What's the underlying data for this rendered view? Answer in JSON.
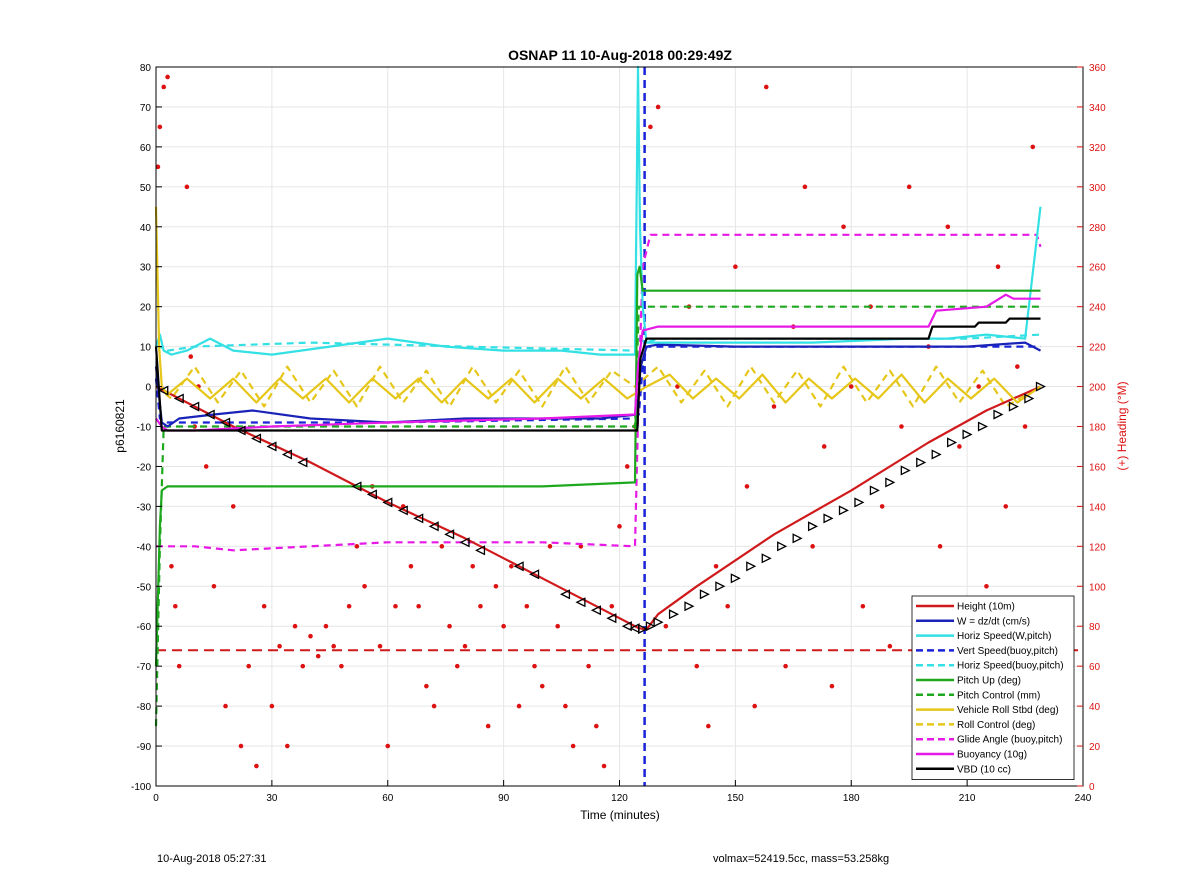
{
  "chart_data": {
    "type": "line",
    "title": "OSNAP 11 10-Aug-2018 00:29:49Z",
    "xlabel": "Time (minutes)",
    "ylabel": "p6160821",
    "y2label": "(+) Heading (°M)",
    "xlim": [
      0,
      240
    ],
    "ylim": [
      -100,
      80
    ],
    "y2lim": [
      0,
      360
    ],
    "xticks": [
      0,
      30,
      60,
      90,
      120,
      150,
      180,
      210,
      240
    ],
    "yticks": [
      -100,
      -90,
      -80,
      -70,
      -60,
      -50,
      -40,
      -30,
      -20,
      -10,
      0,
      10,
      20,
      30,
      40,
      50,
      60,
      70,
      80
    ],
    "y2ticks": [
      0,
      20,
      40,
      60,
      80,
      100,
      120,
      140,
      160,
      180,
      200,
      220,
      240,
      260,
      280,
      300,
      320,
      340,
      360
    ],
    "grid": true,
    "legend_position": "bottom-right",
    "vertical_marker_x": 126.5,
    "horizontal_marker_y": -66,
    "colors": {
      "height": "#d0191b",
      "w": "#1a23b8",
      "horiz_w": "#33e0e4",
      "vert_buoy": "#1a23d8",
      "horiz_buoy": "#33e0e4",
      "pitch": "#1ea81e",
      "pitch_control": "#1ea81e",
      "roll": "#e6c619",
      "roll_control": "#e6c619",
      "glide": "#e619e6",
      "buoyancy": "#e619e6",
      "vbd": "#000000",
      "heading": "#dd1111"
    },
    "series": [
      {
        "name": "Height (10m)",
        "key": "height",
        "style": "solid",
        "x": [
          0,
          2,
          10,
          20,
          40,
          60,
          80,
          100,
          118,
          125,
          127,
          130,
          140,
          160,
          180,
          200,
          215,
          229
        ],
        "y": [
          0,
          -1,
          -5,
          -10,
          -19,
          -29,
          -38,
          -48,
          -57,
          -60.5,
          -60.8,
          -57,
          -50,
          -37,
          -26,
          -14,
          -6,
          0
        ]
      },
      {
        "name": "W = dz/dt (cm/s)",
        "key": "w",
        "style": "solid",
        "x": [
          0,
          1.5,
          3,
          6,
          15,
          25,
          40,
          60,
          80,
          100,
          115,
          124.5,
          125.5,
          127,
          130,
          150,
          170,
          190,
          210,
          225,
          229
        ],
        "y": [
          5,
          -9,
          -10,
          -8,
          -7,
          -6,
          -8,
          -9,
          -8,
          -8,
          -8,
          -7,
          5,
          10,
          10.5,
          10,
          10,
          10,
          10,
          11,
          9
        ]
      },
      {
        "name": "Horiz Speed(W,pitch)",
        "key": "horiz_w",
        "style": "solid",
        "x": [
          0,
          1,
          2,
          4,
          8,
          14,
          20,
          30,
          45,
          60,
          75,
          90,
          105,
          115,
          124,
          124.8,
          125.3,
          126,
          127,
          130,
          150,
          170,
          195,
          205,
          215,
          225,
          229
        ],
        "y": [
          10,
          13,
          9,
          8,
          9,
          12,
          9,
          8,
          10,
          12,
          10,
          9,
          9,
          8,
          8,
          80,
          40,
          20,
          11,
          11,
          11,
          11,
          12,
          12,
          13,
          12,
          45
        ]
      },
      {
        "name": "Vert Speed(buoy,pitch)",
        "key": "vert_buoy",
        "style": "dashed",
        "x": [
          0,
          1,
          3,
          20,
          60,
          124,
          125,
          126,
          127,
          130,
          170,
          210,
          229
        ],
        "y": [
          2,
          -8,
          -9,
          -9,
          -9,
          -8,
          -7,
          5,
          10,
          10,
          10,
          10,
          10
        ]
      },
      {
        "name": "Horiz Speed(buoy,pitch)",
        "key": "horiz_buoy",
        "style": "dashed",
        "x": [
          0,
          1,
          3,
          10,
          40,
          80,
          124,
          125,
          127,
          130,
          170,
          210,
          229
        ],
        "y": [
          10,
          10,
          9,
          10,
          11,
          10,
          9,
          12,
          11,
          12,
          12,
          12,
          13
        ]
      },
      {
        "name": "Pitch Up (deg)",
        "key": "pitch",
        "style": "solid",
        "x": [
          0,
          1,
          1.5,
          3,
          20,
          60,
          100,
          124,
          124.6,
          125.2,
          126,
          130,
          160,
          200,
          229
        ],
        "y": [
          -70,
          -35,
          -26,
          -25,
          -25,
          -25,
          -25,
          -24,
          28,
          30,
          24,
          24,
          24,
          24,
          24
        ]
      },
      {
        "name": "Pitch Control (mm)",
        "key": "pitch_control",
        "style": "dashed",
        "x": [
          0,
          1,
          2,
          60,
          124,
          125,
          127,
          229
        ],
        "y": [
          -85,
          -40,
          -10,
          -10,
          -10,
          20,
          20,
          20
        ]
      },
      {
        "name": "Vehicle Roll Stbd (deg)",
        "key": "roll",
        "style": "solid",
        "x": [
          0,
          0.8,
          1.5,
          3,
          8,
          14,
          20,
          26,
          32,
          38,
          44,
          50,
          56,
          62,
          68,
          74,
          80,
          86,
          92,
          98,
          104,
          110,
          116,
          122,
          127,
          133,
          139,
          145,
          151,
          157,
          163,
          169,
          175,
          181,
          187,
          193,
          199,
          205,
          211,
          217,
          223,
          229
        ],
        "y": [
          45,
          10,
          0,
          -2,
          2,
          -3,
          2,
          -4,
          2,
          -3,
          2,
          -4,
          2,
          -3,
          2,
          -4,
          2,
          -3,
          2,
          -4,
          2,
          -3,
          2,
          -3,
          0,
          3,
          -3,
          2,
          -3,
          3,
          -4,
          2,
          -3,
          2,
          -3,
          3,
          -4,
          2,
          -3,
          2,
          -4,
          0
        ]
      },
      {
        "name": "Roll Control (deg)",
        "key": "roll_control",
        "style": "dashed",
        "x": [
          0,
          4,
          10,
          16,
          22,
          28,
          34,
          40,
          46,
          52,
          58,
          64,
          70,
          76,
          82,
          88,
          94,
          100,
          106,
          112,
          118,
          124,
          130,
          136,
          142,
          148,
          154,
          160,
          166,
          172,
          178,
          184,
          190,
          196,
          202,
          208,
          214,
          220,
          229
        ],
        "y": [
          0,
          -3,
          5,
          -4,
          4,
          -5,
          5,
          -4,
          4,
          -5,
          5,
          -4,
          4,
          -5,
          5,
          -4,
          4,
          -5,
          5,
          -4,
          4,
          0,
          5,
          -4,
          4,
          -5,
          5,
          -4,
          4,
          -5,
          5,
          -4,
          4,
          -5,
          5,
          -4,
          4,
          -5,
          0
        ]
      },
      {
        "name": "Glide Angle (buoy,pitch)",
        "key": "glide",
        "style": "dashed",
        "x": [
          0,
          1,
          2,
          10,
          20,
          40,
          60,
          80,
          100,
          124,
          125,
          126,
          128,
          140,
          160,
          180,
          200,
          220,
          228,
          229
        ],
        "y": [
          -40,
          -40,
          -40,
          -40,
          -41,
          -40,
          -39,
          -39,
          -39,
          -40,
          0,
          30,
          38,
          38,
          38,
          38,
          38,
          38,
          38,
          35
        ]
      },
      {
        "name": "Buoyancy (10g)",
        "key": "buoyancy",
        "style": "solid",
        "x": [
          0,
          1.5,
          3,
          10,
          30,
          60,
          100,
          124,
          124.8,
          126,
          130,
          150,
          180,
          200,
          202,
          215,
          220,
          222,
          229
        ],
        "y": [
          -8,
          -10,
          -11,
          -11,
          -10,
          -9,
          -8,
          -7,
          5,
          14,
          15,
          15,
          15,
          15,
          19,
          20,
          23,
          22,
          22
        ]
      },
      {
        "name": "VBD (10 cc)",
        "key": "vbd",
        "style": "solid",
        "x": [
          0,
          1.5,
          3,
          60,
          124,
          124.6,
          125.4,
          127,
          130,
          200,
          201,
          212,
          213,
          220,
          221,
          229
        ],
        "y": [
          10,
          -11,
          -11,
          -11,
          -11,
          -11,
          7,
          12,
          12,
          12,
          15,
          15,
          16,
          16,
          17,
          17
        ]
      },
      {
        "name": "Heading",
        "key": "heading",
        "style": "dots",
        "axis": "right",
        "x": [
          0.5,
          1,
          2,
          3,
          4,
          5,
          6,
          8,
          9,
          10,
          11,
          13,
          15,
          18,
          20,
          22,
          24,
          26,
          28,
          30,
          32,
          34,
          36,
          38,
          40,
          42,
          44,
          46,
          48,
          50,
          52,
          54,
          56,
          58,
          60,
          62,
          64,
          66,
          68,
          70,
          72,
          74,
          76,
          78,
          80,
          82,
          84,
          86,
          88,
          90,
          92,
          94,
          96,
          98,
          100,
          102,
          104,
          106,
          108,
          110,
          112,
          114,
          116,
          118,
          120,
          122,
          124,
          128,
          130,
          132,
          135,
          138,
          140,
          143,
          145,
          148,
          150,
          153,
          155,
          158,
          160,
          163,
          165,
          168,
          170,
          173,
          175,
          178,
          180,
          183,
          185,
          188,
          190,
          193,
          195,
          198,
          200,
          203,
          205,
          208,
          210,
          213,
          215,
          218,
          220,
          223,
          225,
          227
        ],
        "y": [
          310,
          330,
          350,
          355,
          110,
          90,
          60,
          300,
          215,
          180,
          200,
          160,
          100,
          40,
          140,
          20,
          60,
          10,
          90,
          40,
          70,
          20,
          80,
          60,
          75,
          65,
          80,
          70,
          60,
          90,
          120,
          100,
          150,
          70,
          20,
          90,
          140,
          110,
          90,
          50,
          40,
          120,
          80,
          60,
          70,
          110,
          90,
          30,
          100,
          80,
          110,
          40,
          90,
          60,
          50,
          120,
          80,
          40,
          20,
          120,
          60,
          30,
          10,
          90,
          130,
          160,
          180,
          330,
          340,
          80,
          200,
          240,
          60,
          30,
          110,
          90,
          260,
          150,
          40,
          350,
          190,
          60,
          230,
          300,
          120,
          170,
          50,
          280,
          200,
          90,
          240,
          140,
          70,
          180,
          300,
          60,
          220,
          120,
          280,
          170,
          40,
          200,
          100,
          260,
          140,
          210,
          180,
          320
        ]
      },
      {
        "name": "Height markers",
        "key": "height",
        "style": "triangles",
        "x": [
          2,
          6,
          10,
          14,
          18,
          22,
          26,
          30,
          34,
          38,
          52,
          56,
          60,
          64,
          68,
          72,
          76,
          80,
          84,
          94,
          98,
          106,
          110,
          114,
          118,
          122,
          124,
          126,
          128,
          130,
          134,
          138,
          142,
          146,
          150,
          154,
          158,
          162,
          166,
          170,
          174,
          178,
          182,
          186,
          190,
          194,
          198,
          202,
          206,
          210,
          214,
          218,
          222,
          226,
          229
        ],
        "y": [
          -1,
          -3,
          -5,
          -7,
          -9,
          -11,
          -13,
          -15,
          -17,
          -19,
          -25,
          -27,
          -29,
          -31,
          -33,
          -35,
          -37,
          -39,
          -41,
          -45,
          -47,
          -52,
          -54,
          -56,
          -58,
          -60,
          -60.5,
          -60.7,
          -60,
          -59,
          -57,
          -55,
          -52,
          -50,
          -48,
          -45,
          -43,
          -40,
          -38,
          -35,
          -33,
          -31,
          -29,
          -26,
          -24,
          -21,
          -19,
          -17,
          -14,
          -12,
          -10,
          -7,
          -5,
          -3,
          0
        ]
      }
    ]
  },
  "footer": {
    "left": "10-Aug-2018 05:27:31",
    "right": "volmax=52419.5cc, mass=53.258kg"
  }
}
